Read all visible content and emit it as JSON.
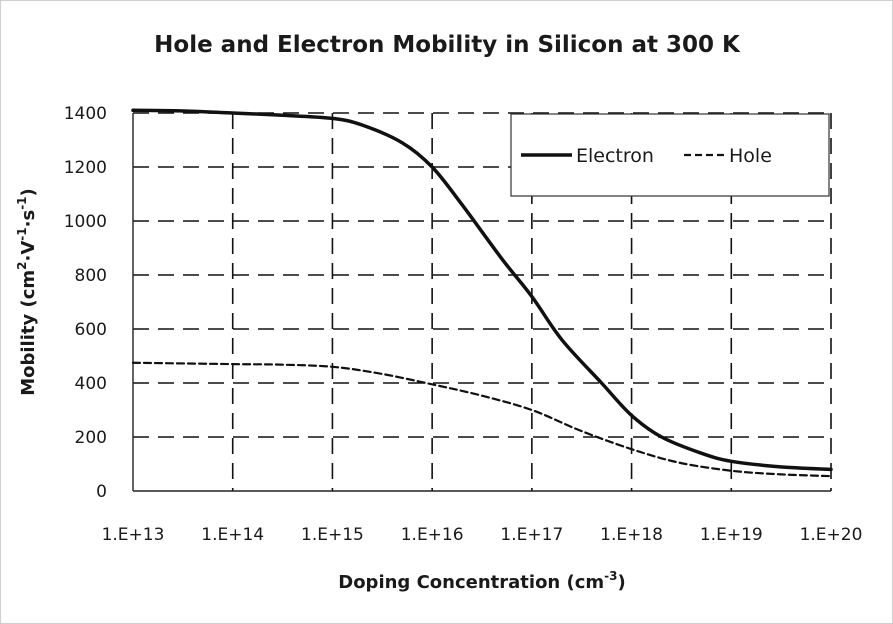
{
  "chart_data": {
    "type": "line",
    "title": "Hole and Electron Mobility in Silicon at 300 K",
    "xlabel": "Doping Concentration (cm",
    "xlabel_sup": "-3",
    "xlabel_end": ")",
    "ylabel": "Mobility (cm",
    "ylabel_parts": [
      "Mobility (cm",
      "2",
      "·V",
      "-1",
      "·s",
      "-1",
      ")"
    ],
    "xscale": "log",
    "xlim": [
      10000000000000.0,
      1e+20
    ],
    "ylim": [
      0,
      1400
    ],
    "grid": true,
    "legend_position": "top-right",
    "x_tick_labels": [
      "1.E+13",
      "1.E+14",
      "1.E+15",
      "1.E+16",
      "1.E+17",
      "1.E+18",
      "1.E+19",
      "1.E+20"
    ],
    "y_ticks": [
      0,
      200,
      400,
      600,
      800,
      1000,
      1200,
      1400
    ],
    "series": [
      {
        "name": "Electron",
        "style": "solid",
        "x": [
          10000000000000.0,
          30000000000000.0,
          100000000000000.0,
          300000000000000.0,
          1000000000000000.0,
          2000000000000000.0,
          5000000000000000.0,
          1e+16,
          2e+16,
          5e+16,
          1e+17,
          2e+17,
          5e+17,
          1e+18,
          2e+18,
          5e+18,
          1e+19,
          3e+19,
          1e+20
        ],
        "y": [
          1410,
          1408,
          1400,
          1392,
          1380,
          1355,
          1290,
          1200,
          1060,
          860,
          720,
          560,
          400,
          280,
          200,
          140,
          110,
          90,
          80
        ]
      },
      {
        "name": "Hole",
        "style": "dashed",
        "x": [
          10000000000000.0,
          100000000000000.0,
          300000000000000.0,
          1000000000000000.0,
          3000000000000000.0,
          1e+16,
          3e+16,
          1e+17,
          3e+17,
          1e+18,
          3e+18,
          1e+19,
          3e+19,
          1e+20
        ],
        "y": [
          475,
          470,
          468,
          460,
          435,
          395,
          355,
          300,
          225,
          155,
          105,
          75,
          62,
          55
        ]
      }
    ]
  }
}
